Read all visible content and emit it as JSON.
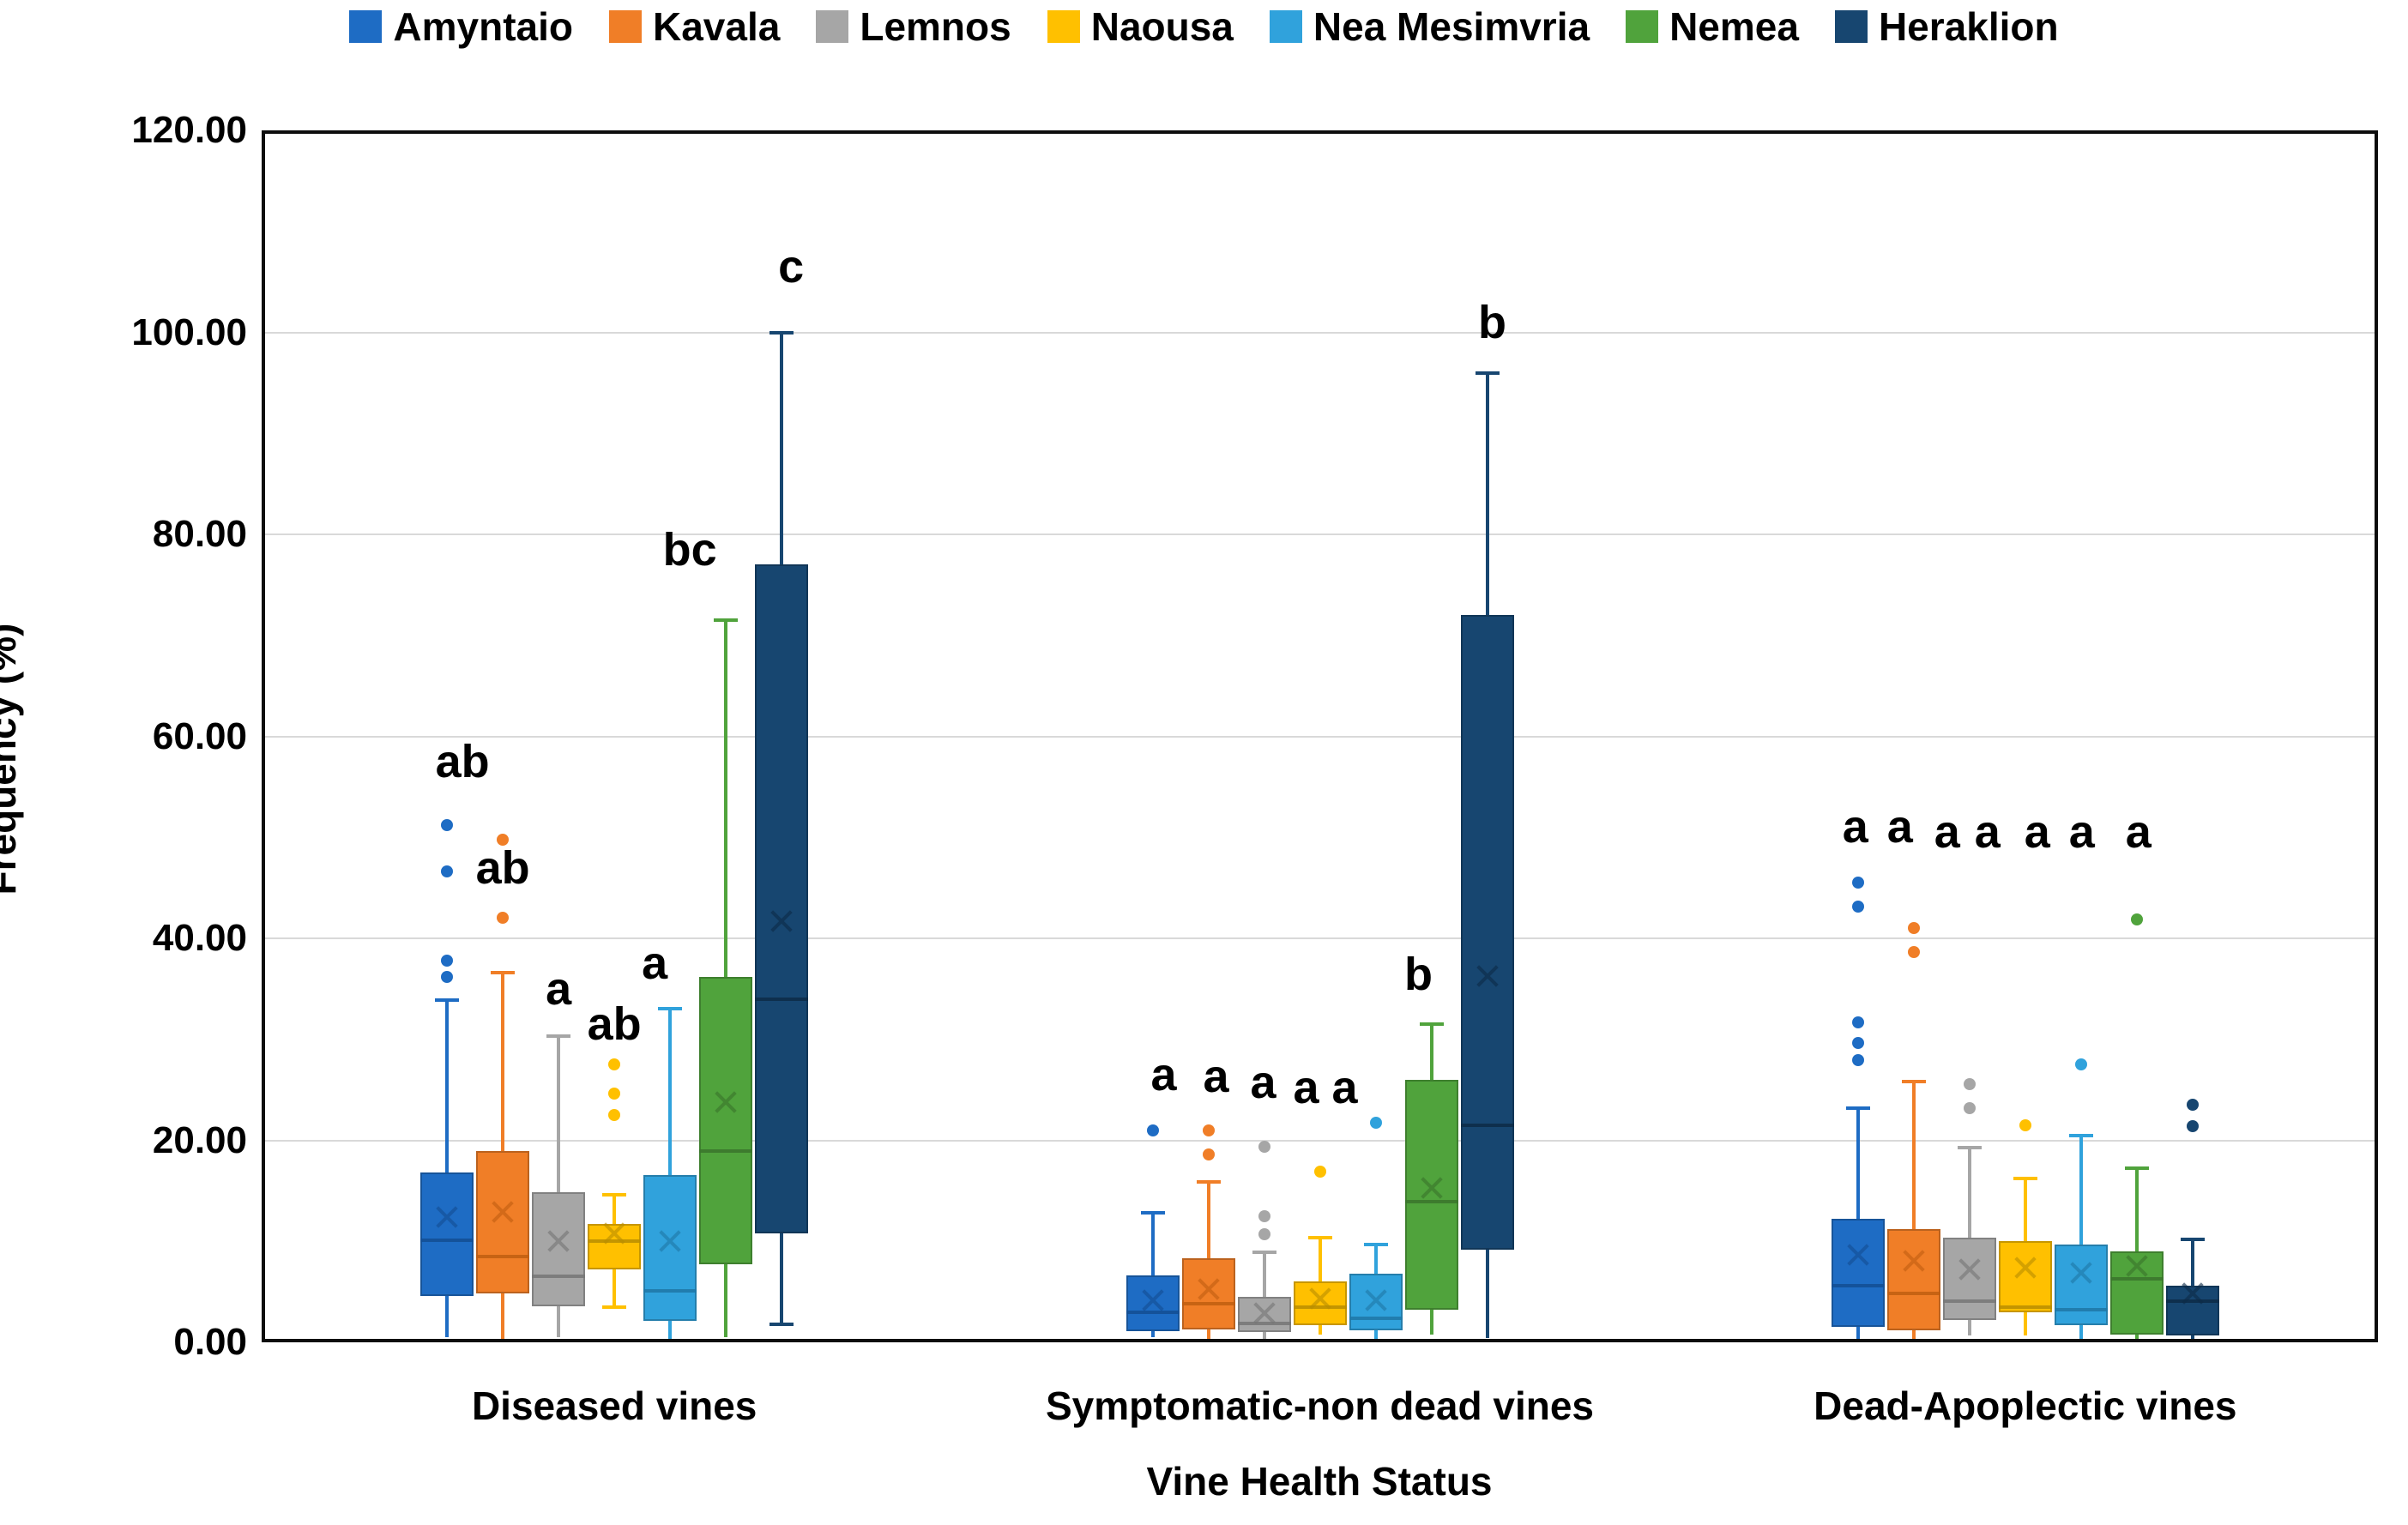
{
  "y_axis": {
    "label": "Frequency (%)",
    "tick_labels": [
      "0.00",
      "20.00",
      "40.00",
      "60.00",
      "80.00",
      "100.00",
      "120.00"
    ],
    "tick_values": [
      0,
      20,
      40,
      60,
      80,
      100,
      120
    ]
  },
  "x_axis": {
    "label": "Vine Health Status"
  },
  "chart_data": {
    "type": "boxplot",
    "title": "",
    "xlabel": "Vine Health Status",
    "ylabel": "Frequency (%)",
    "ylim": [
      0,
      120
    ],
    "grid": "horizontal",
    "legend_position": "top",
    "categories": [
      "Diseased vines",
      "Symptomatic-non dead vines",
      "Dead-Apoplectic vines"
    ],
    "series": [
      {
        "name": "Amyntaio",
        "color": "#1E6CC4",
        "dark": "#134E93",
        "boxes": [
          {
            "min": 0.5,
            "q1": 4.6,
            "median": 10.1,
            "q3": 16.8,
            "max": 33.9,
            "mean": 12.4,
            "outliers": [
              51.2,
              46.6,
              37.8,
              36.2
            ]
          },
          {
            "min": 0.5,
            "q1": 1.1,
            "median": 3.0,
            "q3": 6.6,
            "max": 12.8,
            "mean": 4.2,
            "outliers": [
              21.0
            ]
          },
          {
            "min": 0.3,
            "q1": 1.5,
            "median": 5.6,
            "q3": 12.2,
            "max": 23.2,
            "mean": 8.7,
            "outliers": [
              45.5,
              43.1,
              31.7,
              29.6,
              27.9
            ]
          }
        ]
      },
      {
        "name": "Kavala",
        "color": "#F07E27",
        "dark": "#C05E10",
        "boxes": [
          {
            "min": 0.3,
            "q1": 4.8,
            "median": 8.5,
            "q3": 18.9,
            "max": 36.6,
            "mean": 12.9,
            "outliers": [
              49.8,
              42.0
            ]
          },
          {
            "min": 0.3,
            "q1": 1.3,
            "median": 3.8,
            "q3": 8.3,
            "max": 15.9,
            "mean": 5.3,
            "outliers": [
              21.0,
              18.6
            ]
          },
          {
            "min": 0.3,
            "q1": 1.2,
            "median": 4.8,
            "q3": 11.2,
            "max": 25.8,
            "mean": 8.1,
            "outliers": [
              41.0,
              38.6
            ]
          }
        ]
      },
      {
        "name": "Lemnos",
        "color": "#A6A6A6",
        "dark": "#757575",
        "boxes": [
          {
            "min": 0.5,
            "q1": 3.6,
            "median": 6.5,
            "q3": 14.9,
            "max": 30.3,
            "mean": 10.0,
            "outliers": []
          },
          {
            "min": 0.2,
            "q1": 1.0,
            "median": 1.9,
            "q3": 4.5,
            "max": 8.9,
            "mean": 2.9,
            "outliers": [
              19.4,
              12.5,
              10.7
            ]
          },
          {
            "min": 0.7,
            "q1": 2.2,
            "median": 4.1,
            "q3": 10.4,
            "max": 19.3,
            "mean": 7.2,
            "outliers": [
              25.6,
              23.2
            ]
          }
        ]
      },
      {
        "name": "Naousa",
        "color": "#FFC000",
        "dark": "#B98D00",
        "boxes": [
          {
            "min": 3.5,
            "q1": 7.2,
            "median": 10.0,
            "q3": 11.7,
            "max": 14.6,
            "mean": 10.8,
            "outliers": [
              27.5,
              24.6,
              22.5
            ]
          },
          {
            "min": 0.8,
            "q1": 1.7,
            "median": 3.5,
            "q3": 6.0,
            "max": 10.4,
            "mean": 4.3,
            "outliers": [
              16.9
            ]
          },
          {
            "min": 0.7,
            "q1": 3.0,
            "median": 3.5,
            "q3": 10.0,
            "max": 16.2,
            "mean": 7.4,
            "outliers": [
              21.5
            ]
          }
        ]
      },
      {
        "name": "Nea Mesimvria",
        "color": "#30A2DC",
        "dark": "#1F77A6",
        "boxes": [
          {
            "min": 0.3,
            "q1": 2.1,
            "median": 5.1,
            "q3": 16.6,
            "max": 33.0,
            "mean": 10.0,
            "outliers": []
          },
          {
            "min": 0.3,
            "q1": 1.2,
            "median": 2.4,
            "q3": 6.8,
            "max": 9.7,
            "mean": 4.2,
            "outliers": [
              21.7
            ]
          },
          {
            "min": 0.3,
            "q1": 1.7,
            "median": 3.2,
            "q3": 9.7,
            "max": 20.5,
            "mean": 6.9,
            "outliers": [
              27.5
            ]
          }
        ]
      },
      {
        "name": "Nemea",
        "color": "#50A33C",
        "dark": "#39742B",
        "boxes": [
          {
            "min": 0.5,
            "q1": 7.7,
            "median": 18.9,
            "q3": 36.2,
            "max": 71.5,
            "mean": 23.8,
            "outliers": []
          },
          {
            "min": 0.8,
            "q1": 3.2,
            "median": 13.9,
            "q3": 26.0,
            "max": 31.5,
            "mean": 15.3,
            "outliers": []
          },
          {
            "min": 0.2,
            "q1": 0.8,
            "median": 6.3,
            "q3": 9.0,
            "max": 17.2,
            "mean": 7.6,
            "outliers": [
              41.9
            ]
          }
        ]
      },
      {
        "name": "Heraklion",
        "color": "#174670",
        "dark": "#0D2B47",
        "boxes": [
          {
            "min": 1.8,
            "q1": 10.8,
            "median": 34.0,
            "q3": 77.0,
            "max": 100.0,
            "mean": 41.7,
            "outliers": []
          },
          {
            "min": 0.4,
            "q1": 9.2,
            "median": 21.5,
            "q3": 72.0,
            "max": 96.0,
            "mean": 36.3,
            "outliers": []
          },
          {
            "min": 0.1,
            "q1": 0.7,
            "median": 4.1,
            "q3": 5.6,
            "max": 10.2,
            "mean": 4.8,
            "outliers": [
              23.5,
              21.4
            ]
          }
        ]
      }
    ],
    "annotations": [
      {
        "text": "ab",
        "category": 0,
        "series": 0,
        "y": 57.5,
        "dx": 18
      },
      {
        "text": "ab",
        "category": 0,
        "series": 1,
        "y": 47.0,
        "dx": 0
      },
      {
        "text": "a",
        "category": 0,
        "series": 2,
        "y": 35.0,
        "dx": 0
      },
      {
        "text": "ab",
        "category": 0,
        "series": 3,
        "y": 31.5,
        "dx": 0
      },
      {
        "text": "a",
        "category": 0,
        "series": 4,
        "y": 37.5,
        "dx": -18
      },
      {
        "text": "bc",
        "category": 0,
        "series": 5,
        "y": 78.5,
        "dx": -42
      },
      {
        "text": "c",
        "category": 0,
        "series": 6,
        "y": 106.5,
        "dx": 11
      },
      {
        "text": "a",
        "category": 1,
        "series": 0,
        "y": 26.5,
        "dx": 13
      },
      {
        "text": "a",
        "category": 1,
        "series": 1,
        "y": 26.3,
        "dx": 9
      },
      {
        "text": "a",
        "category": 1,
        "series": 2,
        "y": 25.7,
        "dx": -1
      },
      {
        "text": "a",
        "category": 1,
        "series": 3,
        "y": 25.2,
        "dx": -16
      },
      {
        "text": "a",
        "category": 1,
        "series": 4,
        "y": 25.2,
        "dx": -36
      },
      {
        "text": "b",
        "category": 1,
        "series": 5,
        "y": 36.4,
        "dx": -15
      },
      {
        "text": "b",
        "category": 1,
        "series": 6,
        "y": 101.0,
        "dx": 6
      },
      {
        "text": "a",
        "category": 2,
        "series": 0,
        "y": 51.0,
        "dx": -3
      },
      {
        "text": "a",
        "category": 2,
        "series": 1,
        "y": 51.0,
        "dx": -16
      },
      {
        "text": "a",
        "category": 2,
        "series": 2,
        "y": 50.5,
        "dx": -26
      },
      {
        "text": "a",
        "category": 2,
        "series": 3,
        "y": 50.5,
        "dx": -44
      },
      {
        "text": "a",
        "category": 2,
        "series": 4,
        "y": 50.5,
        "dx": -51
      },
      {
        "text": "a",
        "category": 2,
        "series": 5,
        "y": 50.5,
        "dx": -64
      },
      {
        "text": "a",
        "category": 2,
        "series": 6,
        "y": 50.5,
        "dx": -63
      }
    ],
    "colors": {
      "gridline": "#d9d9d9",
      "plot_border": "#0d0d0d",
      "text": "#000000"
    }
  }
}
